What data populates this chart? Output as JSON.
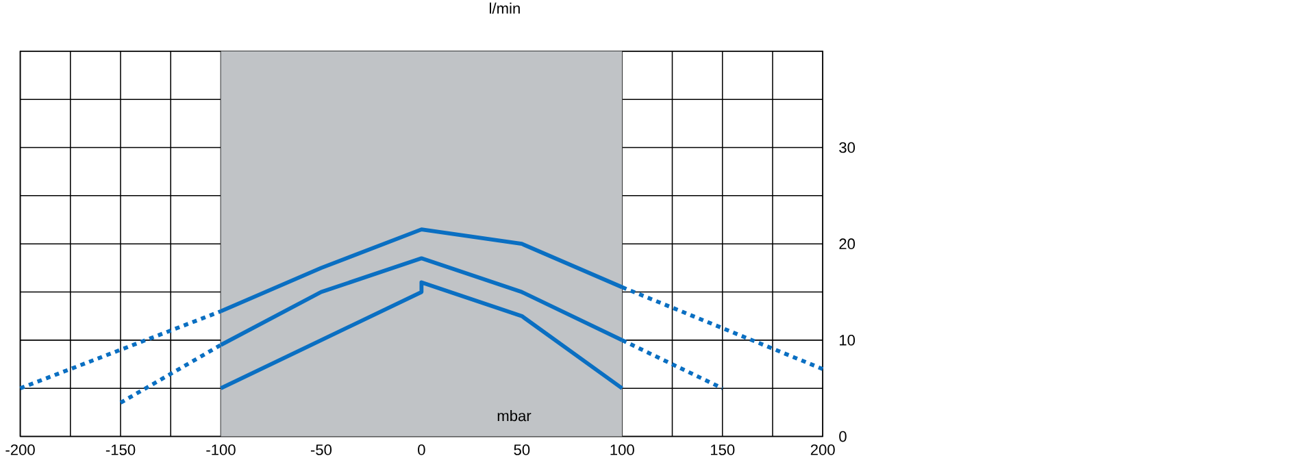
{
  "chart_data": {
    "type": "line",
    "xlabel": "mbar",
    "ylabel": "l/min",
    "xlim": [
      -200,
      200
    ],
    "ylim": [
      0,
      40
    ],
    "xticks": [
      -200,
      {
        "value": -175,
        "label": null
      },
      -150,
      {
        "value": -125,
        "label": null
      },
      -100,
      {
        "value": -75,
        "label": null
      },
      -50,
      {
        "value": -25,
        "label": null
      },
      0,
      {
        "value": 25,
        "label": null
      },
      50,
      {
        "value": 75,
        "label": null
      },
      100,
      {
        "value": 125,
        "label": null
      },
      150,
      {
        "value": 175,
        "label": null
      },
      200
    ],
    "yticks": [
      0,
      {
        "value": 5,
        "label": null
      },
      10,
      {
        "value": 15,
        "label": null
      },
      20,
      {
        "value": 25,
        "label": null
      },
      30,
      {
        "value": 35,
        "label": null
      },
      {
        "value": 40,
        "label": null
      }
    ],
    "grid": true,
    "marker": "none",
    "bands": [
      {
        "axis": "x",
        "from": -100,
        "to": 100,
        "color": "#c0c3c6"
      }
    ],
    "series": [
      {
        "color": "#0a6fc2",
        "line_style": "dotted",
        "x": [
          -200,
          -100
        ],
        "values": [
          5,
          13
        ]
      },
      {
        "color": "#0a6fc2",
        "line_style": "solid",
        "x": [
          -100,
          -50,
          0,
          50,
          100
        ],
        "values": [
          13,
          17.5,
          21.5,
          20,
          15.5
        ]
      },
      {
        "color": "#0a6fc2",
        "line_style": "dotted",
        "x": [
          100,
          200
        ],
        "values": [
          15.5,
          7
        ]
      },
      {
        "color": "#0a6fc2",
        "line_style": "dotted",
        "x": [
          -150,
          -100
        ],
        "values": [
          3.5,
          9.5
        ]
      },
      {
        "color": "#0a6fc2",
        "line_style": "solid",
        "x": [
          -100,
          -50,
          0,
          50,
          100
        ],
        "values": [
          9.5,
          15,
          18.5,
          15,
          10
        ]
      },
      {
        "color": "#0a6fc2",
        "line_style": "dotted",
        "x": [
          100,
          150
        ],
        "values": [
          10,
          5
        ]
      },
      {
        "color": "#0a6fc2",
        "line_style": "solid",
        "x": [
          -100,
          0,
          0,
          50,
          100
        ],
        "values": [
          5,
          15,
          16,
          12.5,
          5
        ]
      }
    ]
  }
}
